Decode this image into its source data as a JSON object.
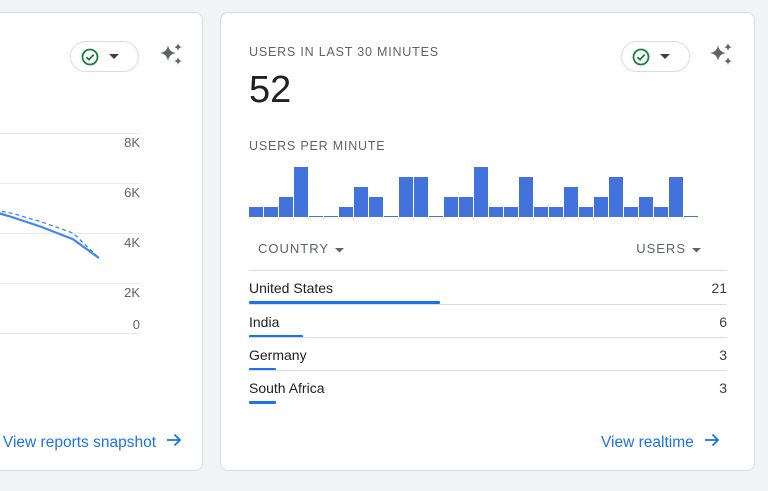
{
  "left_card": {
    "y_ticks": [
      "8K",
      "6K",
      "4K",
      "2K",
      "0"
    ],
    "link_label": "View reports snapshot",
    "status_icon": "check-circle-icon",
    "insights_icon": "sparkle-icon"
  },
  "realtime": {
    "title": "USERS IN LAST 30 MINUTES",
    "total": "52",
    "chart_title": "USERS PER MINUTE",
    "link_label": "View realtime",
    "status_icon": "check-circle-icon",
    "insights_icon": "sparkle-icon",
    "bar_color": "#4272db"
  },
  "table": {
    "col_country": "COUNTRY",
    "col_users": "USERS",
    "rows": [
      {
        "country": "United States",
        "users": "21",
        "share": 0.4
      },
      {
        "country": "India",
        "users": "6",
        "share": 0.114
      },
      {
        "country": "Germany",
        "users": "3",
        "share": 0.057
      },
      {
        "country": "South Africa",
        "users": "3",
        "share": 0.057
      }
    ]
  },
  "chart_data": [
    {
      "type": "line",
      "title": "",
      "y_ticks": [
        "8K",
        "6K",
        "4K",
        "2K",
        "0"
      ],
      "series": [
        {
          "style": "solid",
          "y": [
            5000,
            4650,
            4250,
            3750,
            3000
          ]
        },
        {
          "style": "dashed",
          "y": [
            5000,
            4800,
            4450,
            4000,
            3000
          ]
        }
      ]
    },
    {
      "type": "bar",
      "title": "USERS PER MINUTE",
      "values": [
        1,
        1,
        2,
        5,
        0.1,
        0.1,
        1,
        3,
        2,
        0.1,
        4,
        4,
        0.1,
        2,
        2,
        5,
        1,
        1,
        4,
        1,
        1,
        3,
        1,
        2,
        4,
        1,
        2,
        1,
        4,
        0.1
      ]
    }
  ]
}
